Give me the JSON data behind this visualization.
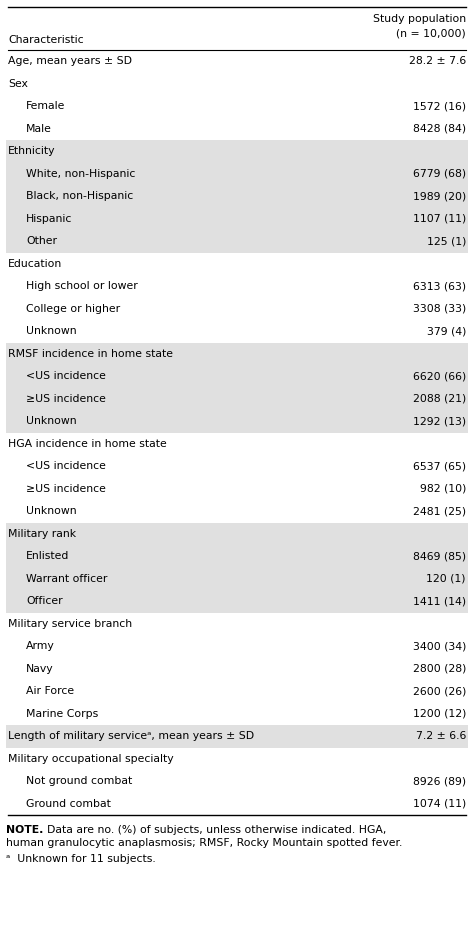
{
  "header_char": "Characteristic",
  "header_val_line1": "Study population",
  "header_val_line2": "(n = 10,000)",
  "rows": [
    {
      "label": "Age, mean years ± SD",
      "value": "28.2 ± 7.6",
      "indent": 0,
      "shaded": false
    },
    {
      "label": "Sex",
      "value": "",
      "indent": 0,
      "shaded": false
    },
    {
      "label": "Female",
      "value": "1572 (16)",
      "indent": 1,
      "shaded": false
    },
    {
      "label": "Male",
      "value": "8428 (84)",
      "indent": 1,
      "shaded": false
    },
    {
      "label": "Ethnicity",
      "value": "",
      "indent": 0,
      "shaded": true
    },
    {
      "label": "White, non-Hispanic",
      "value": "6779 (68)",
      "indent": 1,
      "shaded": true
    },
    {
      "label": "Black, non-Hispanic",
      "value": "1989 (20)",
      "indent": 1,
      "shaded": true
    },
    {
      "label": "Hispanic",
      "value": "1107 (11)",
      "indent": 1,
      "shaded": true
    },
    {
      "label": "Other",
      "value": "125 (1)",
      "indent": 1,
      "shaded": true
    },
    {
      "label": "Education",
      "value": "",
      "indent": 0,
      "shaded": false
    },
    {
      "label": "High school or lower",
      "value": "6313 (63)",
      "indent": 1,
      "shaded": false
    },
    {
      "label": "College or higher",
      "value": "3308 (33)",
      "indent": 1,
      "shaded": false
    },
    {
      "label": "Unknown",
      "value": "379 (4)",
      "indent": 1,
      "shaded": false
    },
    {
      "label": "RMSF incidence in home state",
      "value": "",
      "indent": 0,
      "shaded": true
    },
    {
      "label": "<US incidence",
      "value": "6620 (66)",
      "indent": 1,
      "shaded": true
    },
    {
      "label": "≥US incidence",
      "value": "2088 (21)",
      "indent": 1,
      "shaded": true
    },
    {
      "label": "Unknown",
      "value": "1292 (13)",
      "indent": 1,
      "shaded": true
    },
    {
      "label": "HGA incidence in home state",
      "value": "",
      "indent": 0,
      "shaded": false
    },
    {
      "label": "<US incidence",
      "value": "6537 (65)",
      "indent": 1,
      "shaded": false
    },
    {
      "label": "≥US incidence",
      "value": "982 (10)",
      "indent": 1,
      "shaded": false
    },
    {
      "label": "Unknown",
      "value": "2481 (25)",
      "indent": 1,
      "shaded": false
    },
    {
      "label": "Military rank",
      "value": "",
      "indent": 0,
      "shaded": true
    },
    {
      "label": "Enlisted",
      "value": "8469 (85)",
      "indent": 1,
      "shaded": true
    },
    {
      "label": "Warrant officer",
      "value": "120 (1)",
      "indent": 1,
      "shaded": true
    },
    {
      "label": "Officer",
      "value": "1411 (14)",
      "indent": 1,
      "shaded": true
    },
    {
      "label": "Military service branch",
      "value": "",
      "indent": 0,
      "shaded": false
    },
    {
      "label": "Army",
      "value": "3400 (34)",
      "indent": 1,
      "shaded": false
    },
    {
      "label": "Navy",
      "value": "2800 (28)",
      "indent": 1,
      "shaded": false
    },
    {
      "label": "Air Force",
      "value": "2600 (26)",
      "indent": 1,
      "shaded": false
    },
    {
      "label": "Marine Corps",
      "value": "1200 (12)",
      "indent": 1,
      "shaded": false
    },
    {
      "label": "Length of military serviceᵃ, mean years ± SD",
      "value": "7.2 ± 6.6",
      "indent": 0,
      "shaded": true
    },
    {
      "label": "Military occupational specialty",
      "value": "",
      "indent": 0,
      "shaded": false
    },
    {
      "label": "Not ground combat",
      "value": "8926 (89)",
      "indent": 1,
      "shaded": false
    },
    {
      "label": "Ground combat",
      "value": "1074 (11)",
      "indent": 1,
      "shaded": false
    }
  ],
  "note_bold": "NOTE.",
  "note_rest": "  Data are no. (%) of subjects, unless otherwise indicated. HGA,\nhuman granulocytic anaplasmosis; RMSF, Rocky Mountain spotted fever.",
  "footnote_text": "ᵃ  Unknown for 11 subjects.",
  "shaded_color": "#e0e0e0",
  "white_color": "#ffffff",
  "text_color": "#000000",
  "font_size": 7.8,
  "indent_amount": 0.22
}
